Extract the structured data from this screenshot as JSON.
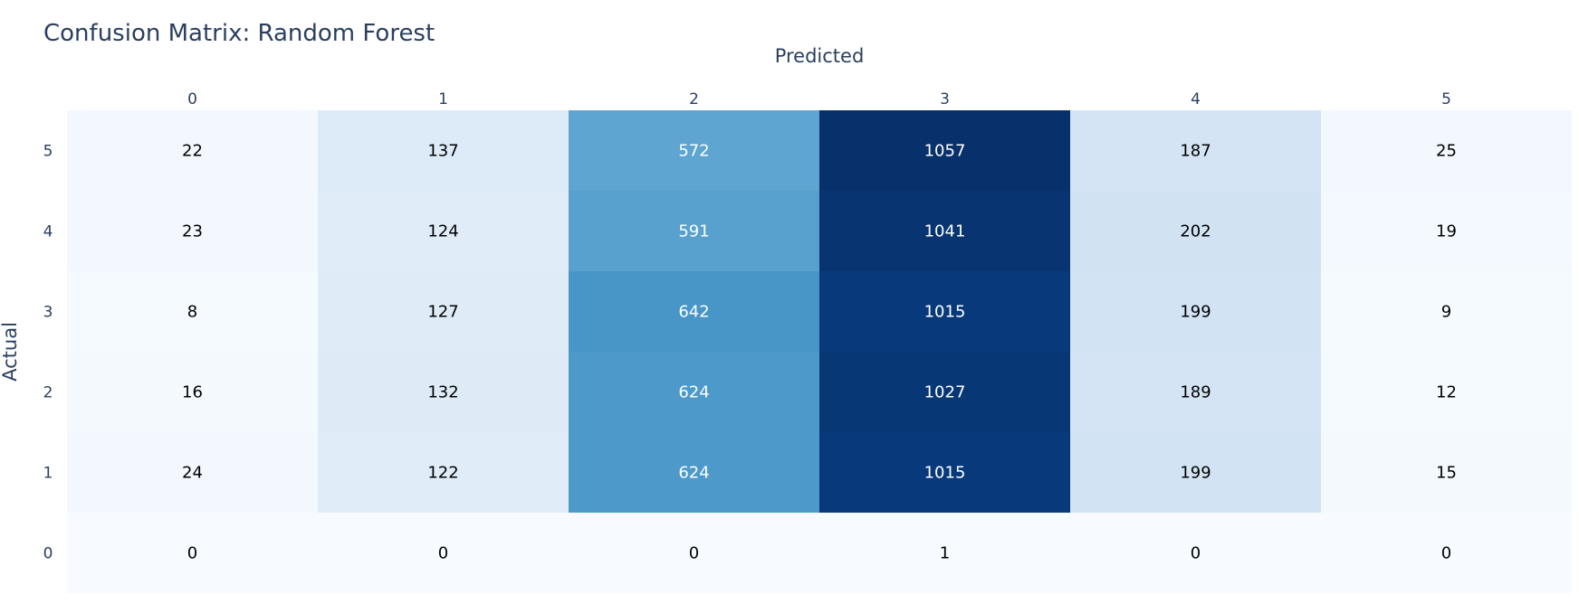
{
  "chart_data": {
    "type": "heatmap",
    "title": "Confusion Matrix: Random Forest",
    "xlabel": "Predicted",
    "ylabel": "Actual",
    "x_categories": [
      "0",
      "1",
      "2",
      "3",
      "4",
      "5"
    ],
    "y_categories_top_to_bottom": [
      "5",
      "4",
      "3",
      "2",
      "1",
      "0"
    ],
    "rows_top_to_bottom": [
      [
        22,
        137,
        572,
        1057,
        187,
        25
      ],
      [
        23,
        124,
        591,
        1041,
        202,
        19
      ],
      [
        8,
        127,
        642,
        1015,
        199,
        9
      ],
      [
        16,
        132,
        624,
        1027,
        189,
        12
      ],
      [
        24,
        122,
        624,
        1015,
        199,
        15
      ],
      [
        0,
        0,
        0,
        1,
        0,
        0
      ]
    ],
    "colorscale": "Blues",
    "x_axis_position": "top",
    "show_colorbar": false
  },
  "colors": {
    "title": "#2a3f5f",
    "tick_text": "#2a3f5f",
    "cell_text_dark": "#000000",
    "cell_text_light": "#ffffff",
    "background": "#ffffff"
  }
}
